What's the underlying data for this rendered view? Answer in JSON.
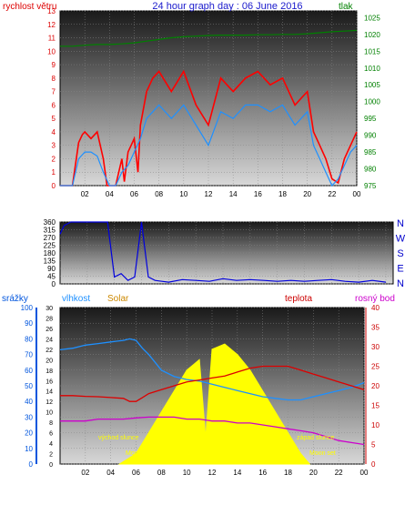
{
  "header": {
    "left_label": "rychlost větru",
    "title": "24 hour graph day : 06 June 2016",
    "right_label": "tlak"
  },
  "direction_labels": [
    "N",
    "W",
    "S",
    "E",
    "N"
  ],
  "bottom_labels": {
    "rain": "srážky",
    "humidity": "vlhkost",
    "solar": "Solar",
    "temperature": "teplota",
    "dewpoint": "rosný bod"
  },
  "annotations": {
    "sunrise": "východ slunce",
    "moonrise": "Moon rise",
    "sunset": "západ slunce",
    "moonset": "Moon set"
  },
  "colors": {
    "wind_gust": "#ff0000",
    "wind_avg": "#1e90ff",
    "pressure": "#008000",
    "direction": "#0000dd",
    "humidity": "#1e90ff",
    "solar": "#ffff00",
    "temperature": "#dd0000",
    "dewpoint": "#cc00cc",
    "rain_axis": "#0055dd",
    "humidity_axis": "#1e90ff",
    "solar_axis": "#ffff00",
    "temp_axis": "#cc0000",
    "wind_axis": "#dd0000",
    "pressure_axis": "#008000"
  },
  "chart_data": [
    {
      "type": "line",
      "id": "wind-pressure",
      "x_ticks": [
        "02",
        "04",
        "06",
        "08",
        "10",
        "12",
        "14",
        "16",
        "18",
        "20",
        "22",
        "00"
      ],
      "y_left": {
        "ticks": [
          "0",
          "1",
          "2",
          "3",
          "4",
          "5",
          "6",
          "7",
          "8",
          "9",
          "10",
          "11",
          "12",
          "13"
        ],
        "range": [
          0,
          13
        ]
      },
      "y_right": {
        "ticks": [
          "975",
          "980",
          "985",
          "990",
          "995",
          "1000",
          "1005",
          "1010",
          "1015",
          "1020",
          "1025"
        ],
        "range": [
          975,
          1027
        ]
      },
      "series": [
        {
          "name": "rychlost větru",
          "axis": "left",
          "x": [
            0,
            0.5,
            0.7,
            1,
            1.5,
            1.8,
            2,
            2.5,
            3,
            3.5,
            3.8,
            4,
            4.5,
            5,
            5.2,
            5.5,
            6,
            6.3,
            6.5,
            7,
            7.5,
            8,
            9,
            10,
            11,
            12,
            13,
            14,
            15,
            16,
            17,
            18,
            19,
            20,
            20.5,
            21,
            21.5,
            22,
            22.5,
            23,
            23.5,
            24
          ],
          "y": [
            0,
            0,
            0,
            0,
            3.2,
            3.8,
            4,
            3.5,
            4,
            2,
            0,
            0,
            0,
            2,
            0.3,
            2.5,
            3.5,
            1,
            4.5,
            7,
            8,
            8.5,
            7,
            8.5,
            6,
            4.5,
            8,
            7,
            8,
            8.5,
            7.5,
            8,
            6,
            7,
            4,
            3,
            2,
            0.5,
            0.2,
            2,
            3,
            4
          ]
        },
        {
          "name": "",
          "axis": "left",
          "x": [
            0,
            0.5,
            1,
            1.5,
            2,
            2.5,
            3,
            3.5,
            4,
            4.5,
            5,
            5.5,
            6,
            6.5,
            7,
            7.5,
            8,
            9,
            10,
            11,
            12,
            13,
            14,
            15,
            16,
            17,
            18,
            19,
            20,
            20.5,
            21,
            21.5,
            22,
            22.5,
            23,
            23.5,
            24
          ],
          "y": [
            0,
            0,
            0,
            2,
            2.5,
            2.5,
            2.2,
            1,
            0,
            0,
            1,
            1.5,
            2.5,
            3.5,
            5,
            5.5,
            6,
            5,
            6,
            4.5,
            3,
            5.5,
            5,
            6,
            6,
            5.5,
            6,
            4.5,
            5.5,
            3,
            2,
            1,
            0,
            0.5,
            1.5,
            2.5,
            3
          ]
        },
        {
          "name": "tlak",
          "axis": "right",
          "x": [
            0,
            1,
            2,
            3,
            4,
            5,
            6,
            7,
            8,
            9,
            10,
            11,
            12,
            13,
            14,
            15,
            16,
            17,
            18,
            19,
            20,
            21,
            22,
            23,
            24
          ],
          "y": [
            1016.5,
            1016.5,
            1016.8,
            1017,
            1017,
            1017.2,
            1017.5,
            1018,
            1018.5,
            1019,
            1019.3,
            1019.5,
            1019.7,
            1019.8,
            1019.8,
            1019.8,
            1019.9,
            1019.9,
            1020,
            1020,
            1020.2,
            1020.5,
            1020.8,
            1021,
            1021.2
          ]
        }
      ]
    },
    {
      "type": "line",
      "id": "wind-direction",
      "x_ticks": [],
      "y_left": {
        "ticks": [
          "0",
          "45",
          "90",
          "135",
          "180",
          "225",
          "270",
          "315",
          "360"
        ],
        "range": [
          0,
          360
        ]
      },
      "series": [
        {
          "name": "",
          "x": [
            0,
            0.3,
            0.8,
            1,
            1.5,
            2,
            2.5,
            3,
            3.5,
            4,
            4.5,
            5,
            5.5,
            6,
            6.5,
            7,
            7.5,
            8,
            9,
            10,
            11,
            12,
            13,
            14,
            15,
            16,
            17,
            18,
            19,
            20,
            21,
            22,
            23,
            24
          ],
          "y": [
            290,
            340,
            360,
            360,
            360,
            360,
            360,
            360,
            360,
            40,
            60,
            20,
            40,
            360,
            40,
            20,
            15,
            10,
            25,
            20,
            15,
            30,
            20,
            25,
            20,
            15,
            20,
            15,
            20,
            25,
            15,
            10,
            20,
            10
          ]
        }
      ]
    },
    {
      "type": "line",
      "id": "solar-temp",
      "x_ticks": [
        "02",
        "04",
        "06",
        "08",
        "10",
        "12",
        "14",
        "16",
        "18",
        "20",
        "22",
        "00"
      ],
      "axes": [
        {
          "name": "srážky",
          "ticks": [
            "0",
            "10",
            "20",
            "30",
            "40",
            "50",
            "60",
            "70",
            "80",
            "90",
            "100"
          ],
          "range": [
            0,
            100
          ]
        },
        {
          "name": "vlhkost",
          "ticks": [
            "0",
            "2",
            "4",
            "6",
            "8",
            "10",
            "12",
            "14",
            "16",
            "18",
            "20",
            "22",
            "24",
            "26",
            "28",
            "30"
          ],
          "range": [
            0,
            30
          ]
        },
        {
          "name": "teplota",
          "ticks": [
            "0",
            "5",
            "10",
            "15",
            "20",
            "25",
            "30",
            "35",
            "40"
          ],
          "range": [
            0,
            40
          ]
        }
      ],
      "series": [
        {
          "name": "Solar",
          "axis": 1,
          "x": [
            4.7,
            6,
            7,
            8,
            9,
            10,
            10.5,
            11,
            11.5,
            12,
            13,
            14,
            15,
            16,
            17,
            18,
            19,
            19.7
          ],
          "y": [
            0,
            2,
            6,
            10,
            14,
            18,
            19,
            20,
            5,
            22,
            23,
            21,
            18,
            14,
            10,
            6,
            2,
            0
          ]
        },
        {
          "name": "vlhkost",
          "axis": 0,
          "x": [
            0,
            1,
            2,
            3,
            4,
            5,
            5.5,
            6,
            6.5,
            7,
            7.5,
            8,
            9,
            10,
            11,
            12,
            13,
            14,
            15,
            16,
            17,
            18,
            19,
            20,
            21,
            22,
            23,
            24
          ],
          "y": [
            73,
            74,
            76,
            77,
            78,
            79,
            80,
            79,
            74,
            70,
            65,
            60,
            56,
            54,
            53,
            51,
            49,
            47,
            45,
            43,
            42,
            41,
            41,
            43,
            45,
            47,
            49,
            52
          ]
        },
        {
          "name": "teplota",
          "axis": 2,
          "x": [
            0,
            1,
            2,
            3,
            4,
            5,
            5.5,
            6,
            6.5,
            7,
            8,
            9,
            10,
            11,
            12,
            13,
            14,
            15,
            16,
            17,
            18,
            19,
            20,
            21,
            22,
            23,
            24
          ],
          "y": [
            17.5,
            17.5,
            17.3,
            17.2,
            17,
            16.8,
            16,
            16,
            17,
            18,
            19,
            20,
            21,
            21.5,
            22,
            22.5,
            23.5,
            24.5,
            25,
            25,
            25,
            24,
            23,
            22,
            21,
            20,
            19
          ]
        },
        {
          "name": "rosný bod",
          "axis": 2,
          "x": [
            0,
            1,
            2,
            3,
            4,
            5,
            6,
            7,
            8,
            9,
            10,
            11,
            12,
            13,
            14,
            15,
            16,
            17,
            18,
            19,
            20,
            21,
            22,
            23,
            24
          ],
          "y": [
            11,
            11,
            11,
            11.5,
            11.5,
            11.5,
            11.8,
            12,
            12,
            12,
            11.5,
            11.5,
            11,
            11,
            10.5,
            10.5,
            10,
            9.5,
            9,
            8.5,
            8,
            7,
            6,
            5.5,
            5
          ]
        }
      ]
    }
  ]
}
